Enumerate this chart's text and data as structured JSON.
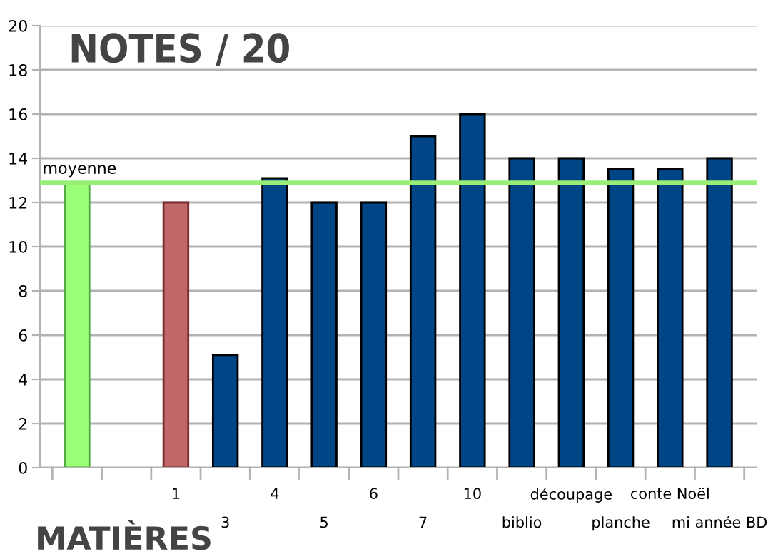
{
  "chart_data": {
    "type": "bar",
    "title": "NOTES / 20",
    "xlabel": "MATIÈRES",
    "categories": [
      null,
      null,
      "1",
      "3",
      "4",
      "5",
      "6",
      "7",
      "10",
      "biblio",
      "découpage",
      "planche",
      "conte Noël",
      "mi année BD"
    ],
    "values": [
      12.9,
      null,
      12,
      5.1,
      13.1,
      12,
      12,
      15,
      16,
      14,
      14,
      13.5,
      13.5,
      14
    ],
    "colors": [
      "#99ff77",
      null,
      "#c0676a",
      "#004586",
      "#004586",
      "#004586",
      "#004586",
      "#004586",
      "#004586",
      "#004586",
      "#004586",
      "#004586",
      "#004586",
      "#004586"
    ],
    "ylim": [
      0,
      20
    ],
    "yticks": [
      0,
      2,
      4,
      6,
      8,
      10,
      12,
      14,
      16,
      18,
      20
    ],
    "grid": "y",
    "legend": false,
    "ref_lines": [
      {
        "axis": "y",
        "value": 12.9,
        "label": "moyenne",
        "color": "#99ee77",
        "line_style": "solid"
      }
    ]
  }
}
